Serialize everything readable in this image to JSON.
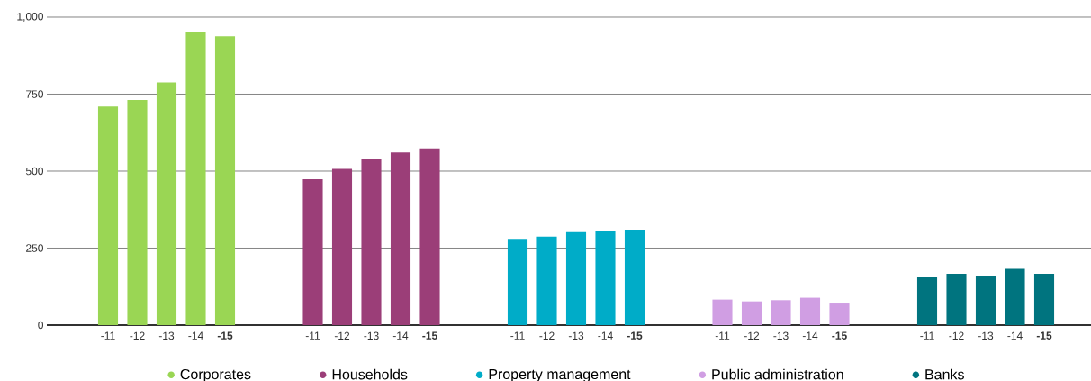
{
  "chart_data": {
    "type": "bar",
    "categories": [
      "-11",
      "-12",
      "-13",
      "-14",
      "**-15**",
      null,
      null,
      "-11",
      "-12",
      "-13",
      "-14",
      "**-15**",
      null,
      null,
      "-11",
      "-12",
      "-13",
      "-14",
      "**-15**",
      null,
      null,
      "-11",
      "-12",
      "-13",
      "-14",
      "**-15**",
      null,
      null,
      "-11",
      "-12",
      "-13",
      "-14",
      "**-15**"
    ],
    "series": [
      {
        "name": "Corporates",
        "color": "#9ad654",
        "values": [
          710,
          731,
          788,
          951,
          938,
          null,
          null,
          null,
          null,
          null,
          null,
          null,
          null,
          null,
          null,
          null,
          null,
          null,
          null,
          null,
          null,
          null,
          null,
          null,
          null,
          null,
          null,
          null,
          null,
          null,
          null,
          null,
          null
        ]
      },
      {
        "name": "Households",
        "color": "#9b3e78",
        "values": [
          null,
          null,
          null,
          null,
          null,
          null,
          null,
          474,
          507,
          538,
          561,
          574,
          null,
          null,
          null,
          null,
          null,
          null,
          null,
          null,
          null,
          null,
          null,
          null,
          null,
          null,
          null,
          null,
          null,
          null,
          null,
          null,
          null
        ]
      },
      {
        "name": "Property management",
        "color": "#00acc8",
        "values": [
          null,
          null,
          null,
          null,
          null,
          null,
          null,
          null,
          null,
          null,
          null,
          null,
          null,
          null,
          280,
          287,
          302,
          304,
          310,
          null,
          null,
          null,
          null,
          null,
          null,
          null,
          null,
          null,
          null,
          null,
          null,
          null,
          null
        ]
      },
      {
        "name": "Public administration",
        "color": "#d09ee3",
        "values": [
          null,
          null,
          null,
          null,
          null,
          null,
          null,
          null,
          null,
          null,
          null,
          null,
          null,
          null,
          null,
          null,
          null,
          null,
          null,
          null,
          null,
          83,
          77,
          81,
          89,
          73,
          null,
          null,
          null,
          null,
          null,
          null,
          null
        ]
      },
      {
        "name": "Banks",
        "color": "#00747f",
        "values": [
          null,
          null,
          null,
          null,
          null,
          null,
          null,
          null,
          null,
          null,
          null,
          null,
          null,
          null,
          null,
          null,
          null,
          null,
          null,
          null,
          null,
          null,
          null,
          null,
          null,
          null,
          null,
          null,
          155,
          167,
          161,
          183,
          167
        ]
      }
    ],
    "ylim": [
      0,
      1000
    ],
    "yticks": [
      0,
      250,
      500,
      750,
      {
        "value": 1000,
        "label": "1,000"
      }
    ],
    "grid": "y",
    "legend": "bottom"
  }
}
